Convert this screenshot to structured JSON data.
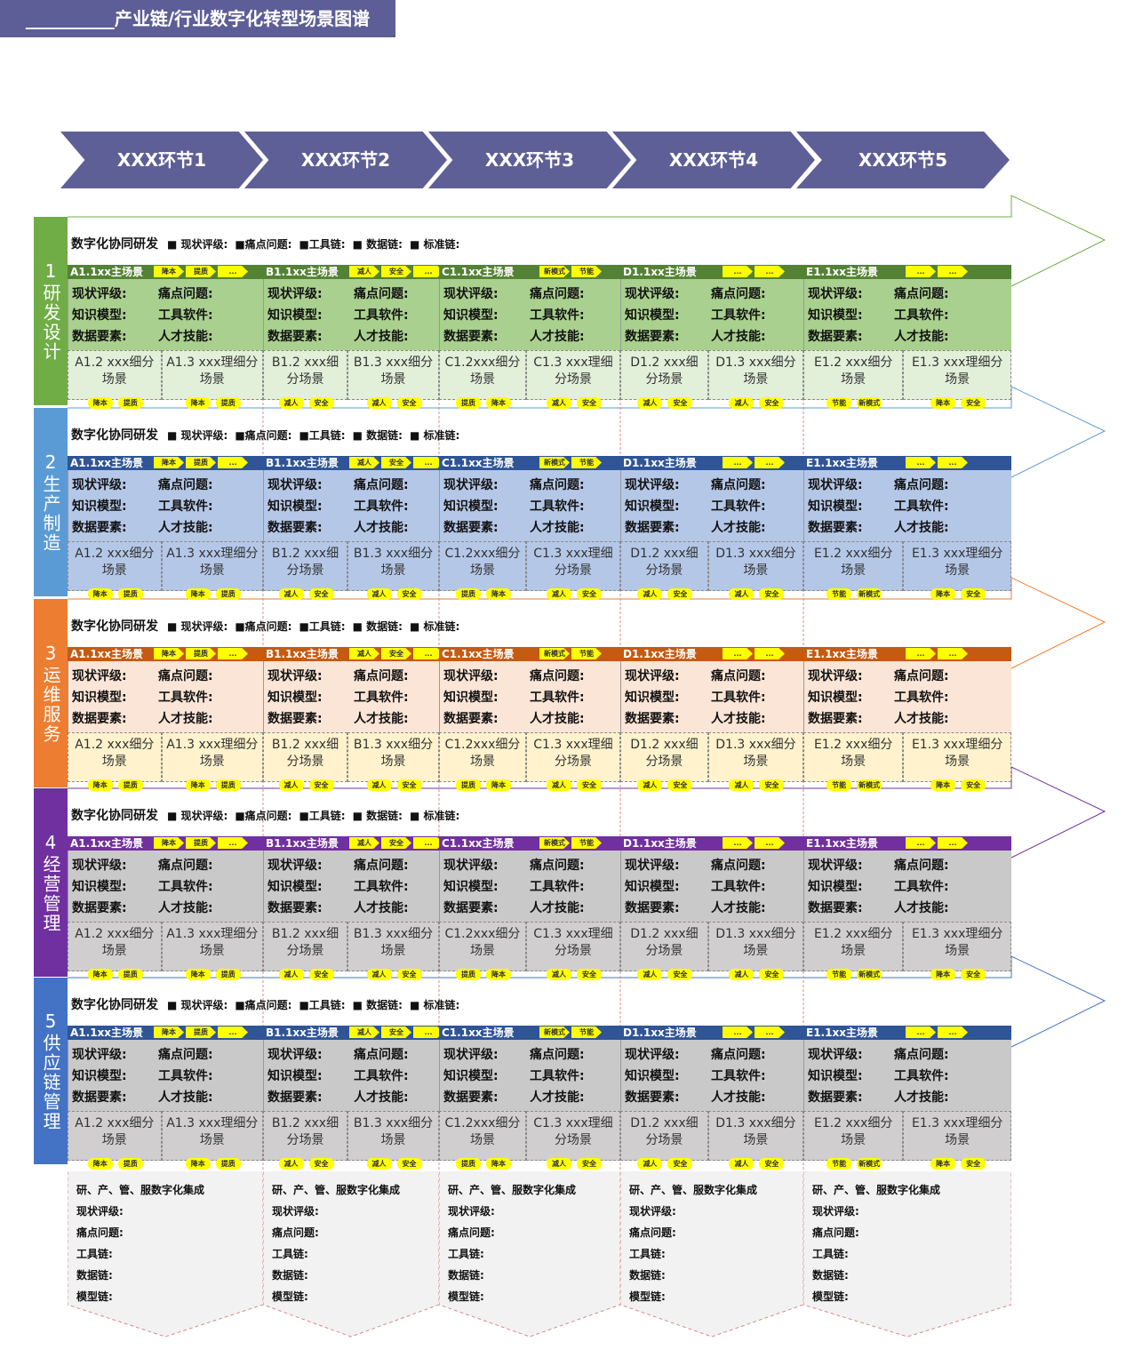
{
  "title": "__________产业链/行业数字化转型场景图谱",
  "stages": [
    "XXX环节1",
    "XXX环节2",
    "XXX环节3",
    "XXX环节4",
    "XXX环节5"
  ],
  "colors": {
    "title_bg": "#5d5d97",
    "stage_bg": "#5f5f97",
    "tag": "#ffff00"
  },
  "legend": {
    "title": "数字化协同研发",
    "items": [
      "■ 现状评级:",
      "■痛点问题:",
      "■工具链:",
      "■ 数据链:",
      "■ 标准链:"
    ]
  },
  "fields": [
    "现状评级:",
    "痛点问题:",
    "知识模型:",
    "工具软件:",
    "数据要素:",
    "人才技能:"
  ],
  "rows": [
    {
      "label": "1研发设计",
      "side": "#70ad47",
      "bar": "#548235",
      "body": "#a9d08e",
      "sub": "#e2efd9"
    },
    {
      "label": "2生产制造",
      "side": "#5b9bd5",
      "bar": "#2f5597",
      "body": "#b4c7e7",
      "sub": "#b4c7e7"
    },
    {
      "label": "3运维服务",
      "side": "#ed7d31",
      "bar": "#c55a11",
      "body": "#fbe5d6",
      "sub": "#fff2cc"
    },
    {
      "label": "4经营管理",
      "side": "#7030a0",
      "bar": "#7030a0",
      "body": "#c9c9c9",
      "sub": "#d0cece"
    },
    {
      "label": "5供应链管理",
      "side": "#4472c4",
      "bar": "#2f5597",
      "body": "#c9c9c9",
      "sub": "#d0cece"
    }
  ],
  "columns": [
    {
      "main": "A1.1xx主场景",
      "bar_tags": [
        "降本",
        "提质",
        "..."
      ],
      "subs": [
        {
          "name": "A1.2 xxx细分场景",
          "tags": [
            "降本",
            "提质"
          ]
        },
        {
          "name": "A1.3 xxx理细分场景",
          "tags": [
            "降本",
            "提质"
          ]
        }
      ]
    },
    {
      "main": "B1.1xx主场景",
      "bar_tags": [
        "减人",
        "安全",
        "..."
      ],
      "subs": [
        {
          "name": "B1.2 xxx细分场景",
          "tags": [
            "减人",
            "安全"
          ]
        },
        {
          "name": "B1.3 xxx细分场景",
          "tags": [
            "减人",
            "安全"
          ]
        }
      ]
    },
    {
      "main": "C1.1xx主场景",
      "bar_tags": [
        "新模式",
        "节能"
      ],
      "subs": [
        {
          "name": "C1.2xxx细分场景",
          "tags": [
            "提质",
            "降本"
          ]
        },
        {
          "name": "C1.3 xxx理细分场景",
          "tags": [
            "减人",
            "安全"
          ]
        }
      ]
    },
    {
      "main": "D1.1xx主场景",
      "bar_tags": [
        "...",
        "..."
      ],
      "subs": [
        {
          "name": "D1.2 xxx细分场景",
          "tags": [
            "减人",
            "安全"
          ]
        },
        {
          "name": "D1.3 xxx细分场景",
          "tags": [
            "减人",
            "安全"
          ]
        }
      ]
    },
    {
      "main": "E1.1xx主场景",
      "bar_tags": [
        "...",
        "..."
      ],
      "subs": [
        {
          "name": "E1.2 xxx细分场景",
          "tags": [
            "节能",
            "新模式"
          ]
        },
        {
          "name": "E1.3 xxx理细分场景",
          "tags": [
            "降本",
            "安全"
          ]
        }
      ]
    }
  ],
  "integration": {
    "title": "研、产、管、服数字化集成",
    "items": [
      "现状评级:",
      "痛点问题:",
      "工具链:",
      "数据链:",
      "模型链:"
    ]
  }
}
